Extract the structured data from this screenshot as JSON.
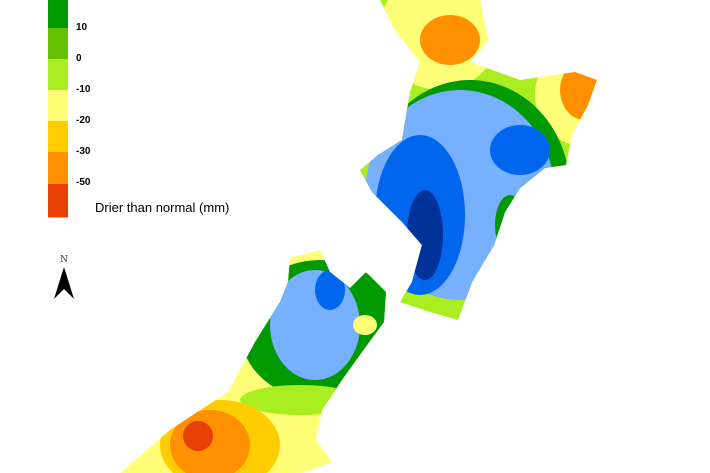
{
  "legend": {
    "title": "Drier than normal (mm)",
    "classes": [
      {
        "color": "#009900",
        "label": ""
      },
      {
        "color": "#66bf00",
        "label": "10"
      },
      {
        "color": "#aaee22",
        "label": "0"
      },
      {
        "color": "#ffff77",
        "label": "-10"
      },
      {
        "color": "#ffcc00",
        "label": "-20"
      },
      {
        "color": "#ff9100",
        "label": "-30"
      },
      {
        "color": "#e84000",
        "label": "-50"
      }
    ]
  },
  "wetter_colors": {
    "light_blue": "#77b0ff",
    "blue": "#0066ee",
    "dark_blue": "#003399"
  },
  "north_arrow": {
    "label": "N",
    "icon": "north-arrow-icon"
  }
}
